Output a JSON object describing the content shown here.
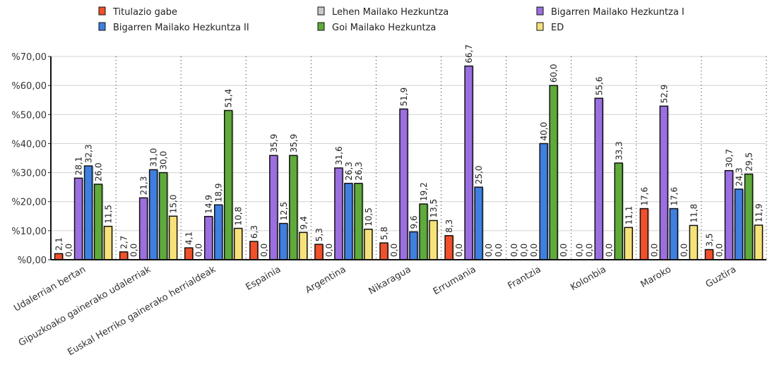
{
  "chart_data": {
    "type": "bar",
    "title": "",
    "xlabel": "",
    "ylabel": "",
    "ylim": [
      0,
      70
    ],
    "y_ticks": [
      "%0,00",
      "%10,00",
      "%20,00",
      "%30,00",
      "%40,00",
      "%50,00",
      "%60,00",
      "%70,00"
    ],
    "grid": true,
    "legend_position": "right",
    "categories": [
      "Udalerrian bertan",
      "Gipuzkoako gainerako udalerriak",
      "Euskal Herriko gainerako herrialdeak",
      "Espainia",
      "Argentina",
      "Nikaragua",
      "Errumania",
      "Frantzia",
      "Kolonbia",
      "Maroko",
      "Guztira"
    ],
    "series": [
      {
        "name": "Titulazio gabe",
        "color": "#f0502a",
        "values": [
          2.1,
          2.7,
          4.1,
          6.3,
          5.3,
          5.8,
          8.3,
          0.0,
          0.0,
          17.6,
          3.5
        ]
      },
      {
        "name": "Lehen Mailako Hezkuntza",
        "color": "#c8c8c8",
        "values": [
          0.0,
          0.0,
          0.0,
          0.0,
          0.0,
          0.0,
          0.0,
          0.0,
          0.0,
          0.0,
          0.0
        ]
      },
      {
        "name": "Bigarren Mailako Hezkuntza I",
        "color": "#9b6fe0",
        "values": [
          28.1,
          21.3,
          14.9,
          35.9,
          31.6,
          51.9,
          66.7,
          0.0,
          55.6,
          52.9,
          30.7
        ]
      },
      {
        "name": "Bigarren Mailako Hezkuntza II",
        "color": "#3f7fe0",
        "values": [
          32.3,
          31.0,
          18.9,
          12.5,
          26.3,
          9.6,
          25.0,
          40.0,
          0.0,
          17.6,
          24.3
        ]
      },
      {
        "name": "Goi Mailako Hezkuntza",
        "color": "#5eaa3a",
        "values": [
          26.0,
          30.0,
          51.4,
          35.9,
          26.3,
          19.2,
          0.0,
          60.0,
          33.3,
          0.0,
          29.5
        ]
      },
      {
        "name": "ED",
        "color": "#f7e27a",
        "values": [
          11.5,
          15.0,
          10.8,
          9.4,
          10.5,
          13.5,
          0.0,
          0.0,
          11.1,
          11.8,
          11.9
        ]
      }
    ]
  }
}
